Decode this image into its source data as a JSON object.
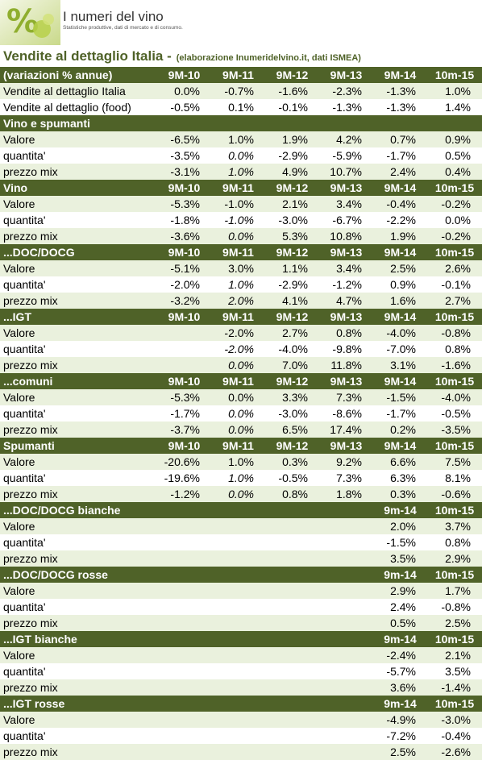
{
  "header": {
    "title": "I numeri del vino",
    "subtitle": "Statistiche produttive, dati di mercato e di consumo."
  },
  "heading": {
    "title": "Vendite al dettaglio Italia -",
    "source": "(elaborazione Inumeridelvino.it, dati ISMEA)"
  },
  "table": {
    "sections": [
      {
        "header": [
          "(variazioni % annue)",
          "9M-10",
          "9M-11",
          "9M-12",
          "9M-13",
          "9M-14",
          "10m-15"
        ],
        "rows": [
          [
            "Vendite al dettaglio Italia",
            "0.0%",
            "-0.7%",
            "-1.6%",
            "-2.3%",
            "-1.3%",
            "1.0%"
          ],
          [
            "Vendite al dettaglio (food)",
            "-0.5%",
            "0.1%",
            "-0.1%",
            "-1.3%",
            "-1.3%",
            "1.4%"
          ]
        ]
      },
      {
        "header": [
          "Vino e spumanti",
          null,
          null,
          null,
          null,
          null,
          null
        ],
        "rows": [
          [
            "Valore",
            "-6.5%",
            "1.0%",
            "1.9%",
            "4.2%",
            "0.7%",
            "0.9%"
          ],
          [
            "quantita'",
            "-3.5%",
            "0.0%",
            "-2.9%",
            "-5.9%",
            "-1.7%",
            "0.5%"
          ],
          [
            "prezzo mix",
            "-3.1%",
            "1.0%",
            "4.9%",
            "10.7%",
            "2.4%",
            "0.4%"
          ]
        ]
      },
      {
        "header": [
          "Vino",
          "9M-10",
          "9M-11",
          "9M-12",
          "9M-13",
          "9M-14",
          "10m-15"
        ],
        "rows": [
          [
            "Valore",
            "-5.3%",
            "-1.0%",
            "2.1%",
            "3.4%",
            "-0.4%",
            "-0.2%"
          ],
          [
            "quantita'",
            "-1.8%",
            "-1.0%",
            "-3.0%",
            "-6.7%",
            "-2.2%",
            "0.0%"
          ],
          [
            "prezzo mix",
            "-3.6%",
            "0.0%",
            "5.3%",
            "10.8%",
            "1.9%",
            "-0.2%"
          ]
        ]
      },
      {
        "header": [
          "...DOC/DOCG",
          "9M-10",
          "9M-11",
          "9M-12",
          "9M-13",
          "9M-14",
          "10m-15"
        ],
        "rows": [
          [
            "Valore",
            "-5.1%",
            "3.0%",
            "1.1%",
            "3.4%",
            "2.5%",
            "2.6%"
          ],
          [
            "quantita'",
            "-2.0%",
            "1.0%",
            "-2.9%",
            "-1.2%",
            "0.9%",
            "-0.1%"
          ],
          [
            "prezzo mix",
            "-3.2%",
            "2.0%",
            "4.1%",
            "4.7%",
            "1.6%",
            "2.7%"
          ]
        ]
      },
      {
        "header": [
          "...IGT",
          "9M-10",
          "9M-11",
          "9M-12",
          "9M-13",
          "9M-14",
          "10m-15"
        ],
        "rows": [
          [
            "Valore",
            null,
            "-2.0%",
            "2.7%",
            "0.8%",
            "-4.0%",
            "-0.8%"
          ],
          [
            "quantita'",
            null,
            "-2.0%",
            "-4.0%",
            "-9.8%",
            "-7.0%",
            "0.8%"
          ],
          [
            "prezzo mix",
            null,
            "0.0%",
            "7.0%",
            "11.8%",
            "3.1%",
            "-1.6%"
          ]
        ]
      },
      {
        "header": [
          "...comuni",
          "9M-10",
          "9M-11",
          "9M-12",
          "9M-13",
          "9M-14",
          "10m-15"
        ],
        "rows": [
          [
            "Valore",
            "-5.3%",
            "0.0%",
            "3.3%",
            "7.3%",
            "-1.5%",
            "-4.0%"
          ],
          [
            "quantita'",
            "-1.7%",
            "0.0%",
            "-3.0%",
            "-8.6%",
            "-1.7%",
            "-0.5%"
          ],
          [
            "prezzo mix",
            "-3.7%",
            "0.0%",
            "6.5%",
            "17.4%",
            "0.2%",
            "-3.5%"
          ]
        ]
      },
      {
        "header": [
          "Spumanti",
          "9M-10",
          "9M-11",
          "9M-12",
          "9M-13",
          "9M-14",
          "10m-15"
        ],
        "rows": [
          [
            "Valore",
            "-20.6%",
            "1.0%",
            "0.3%",
            "9.2%",
            "6.6%",
            "7.5%"
          ],
          [
            "quantita'",
            "-19.6%",
            "1.0%",
            "-0.5%",
            "7.3%",
            "6.3%",
            "8.1%"
          ],
          [
            "prezzo mix",
            "-1.2%",
            "0.0%",
            "0.8%",
            "1.8%",
            "0.3%",
            "-0.6%"
          ]
        ]
      },
      {
        "header": [
          "...DOC/DOCG bianche",
          null,
          null,
          null,
          null,
          "9m-14",
          "10m-15"
        ],
        "rows": [
          [
            "Valore",
            null,
            null,
            null,
            null,
            "2.0%",
            "3.7%"
          ],
          [
            "quantita'",
            null,
            null,
            null,
            null,
            "-1.5%",
            "0.8%"
          ],
          [
            "prezzo mix",
            null,
            null,
            null,
            null,
            "3.5%",
            "2.9%"
          ]
        ]
      },
      {
        "header": [
          "...DOC/DOCG rosse",
          null,
          null,
          null,
          null,
          "9m-14",
          "10m-15"
        ],
        "rows": [
          [
            "Valore",
            null,
            null,
            null,
            null,
            "2.9%",
            "1.7%"
          ],
          [
            "quantita'",
            null,
            null,
            null,
            null,
            "2.4%",
            "-0.8%"
          ],
          [
            "prezzo mix",
            null,
            null,
            null,
            null,
            "0.5%",
            "2.5%"
          ]
        ]
      },
      {
        "header": [
          "...IGT bianche",
          null,
          null,
          null,
          null,
          "9m-14",
          "10m-15"
        ],
        "rows": [
          [
            "Valore",
            null,
            null,
            null,
            null,
            "-2.4%",
            "2.1%"
          ],
          [
            "quantita'",
            null,
            null,
            null,
            null,
            "-5.7%",
            "3.5%"
          ],
          [
            "prezzo mix",
            null,
            null,
            null,
            null,
            "3.6%",
            "-1.4%"
          ]
        ]
      },
      {
        "header": [
          "...IGT rosse",
          null,
          null,
          null,
          null,
          "9m-14",
          "10m-15"
        ],
        "rows": [
          [
            "Valore",
            null,
            null,
            null,
            null,
            "-4.9%",
            "-3.0%"
          ],
          [
            "quantita'",
            null,
            null,
            null,
            null,
            "-7.2%",
            "-0.4%"
          ],
          [
            "prezzo mix",
            null,
            null,
            null,
            null,
            "2.5%",
            "-2.6%"
          ]
        ]
      }
    ]
  }
}
